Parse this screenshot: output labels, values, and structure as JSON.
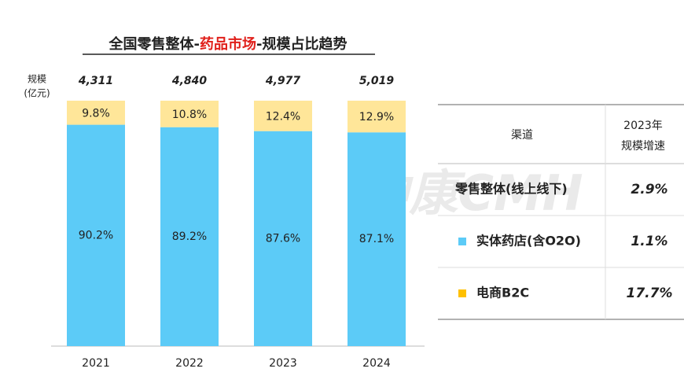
{
  "chart_data": {
    "type": "stacked_bar_percent",
    "title": {
      "prefix": "全国零售整体-",
      "highlight": "药品市场",
      "suffix": "-规模占比趋势"
    },
    "ylabel": [
      "规模",
      "(亿元)"
    ],
    "categories": [
      "2021",
      "2022",
      "2023",
      "2024"
    ],
    "totals": [
      4311,
      4840,
      4977,
      5019
    ],
    "total_labels": [
      "4,311",
      "4,840",
      "4,977",
      "5,019"
    ],
    "series": [
      {
        "name": "实体药店",
        "color": "#5ccbf7",
        "values": [
          90.2,
          89.2,
          87.6,
          87.1
        ],
        "value_labels": [
          "90.2%",
          "89.2%",
          "87.6%",
          "87.1%"
        ]
      },
      {
        "name": "电商B2C",
        "color": "#ffe699",
        "values": [
          9.8,
          10.8,
          12.4,
          12.9
        ],
        "value_labels": [
          "9.8%",
          "10.8%",
          "12.4%",
          "12.9%"
        ]
      }
    ],
    "ylim": [
      0,
      100
    ]
  },
  "table": {
    "header": [
      "渠道",
      [
        "2023年",
        "规模增速"
      ]
    ],
    "rows": [
      [
        "零售整体(线上线下)",
        "2.9%"
      ],
      [
        "实体药店(含O2O)",
        "1.1%"
      ],
      [
        "电商B2C",
        "17.7%"
      ]
    ]
  },
  "watermark": "中康CMH"
}
